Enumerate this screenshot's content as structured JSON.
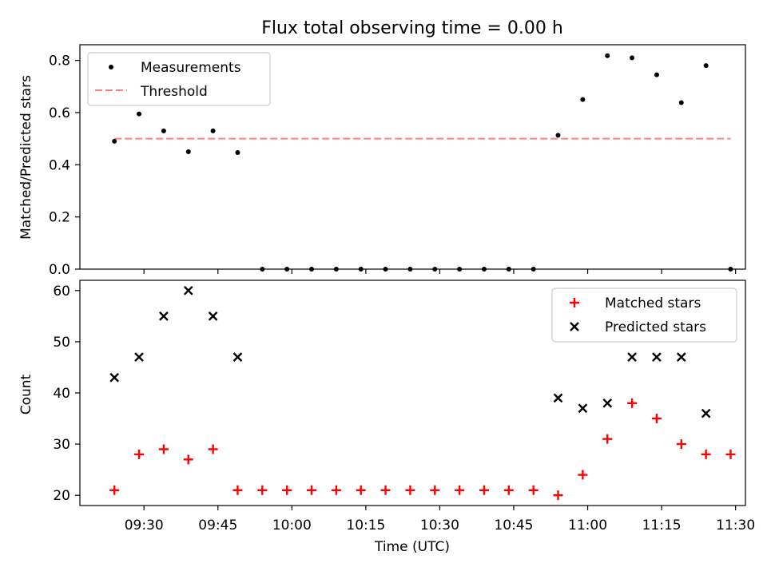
{
  "title": "Flux total observing time = 0.00 h",
  "chart_data": [
    {
      "type": "scatter",
      "title": "Flux total observing time = 0.00 h",
      "ylabel": "Matched/Predicted stars",
      "xlabel": "",
      "ylim": [
        0,
        0.86
      ],
      "xlim": [
        "09:17",
        "11:32"
      ],
      "yticks": [
        "0.0",
        "0.2",
        "0.4",
        "0.6",
        "0.8"
      ],
      "legend_position": "upper-left",
      "series": [
        {
          "name": "Measurements",
          "color": "#000000",
          "marker": "dot",
          "x": [
            "09:24",
            "09:29",
            "09:34",
            "09:39",
            "09:44",
            "09:49",
            "09:54",
            "09:59",
            "10:04",
            "10:09",
            "10:14",
            "10:19",
            "10:24",
            "10:29",
            "10:34",
            "10:39",
            "10:44",
            "10:49",
            "10:54",
            "10:59",
            "11:04",
            "11:09",
            "11:14",
            "11:19",
            "11:24",
            "11:29"
          ],
          "y": [
            0.49,
            0.595,
            0.53,
            0.45,
            0.53,
            0.447,
            0,
            0,
            0,
            0,
            0,
            0,
            0,
            0,
            0,
            0,
            0,
            0,
            0.513,
            0.65,
            0.818,
            0.81,
            0.745,
            0.638,
            0.78,
            0
          ]
        },
        {
          "name": "Threshold",
          "color": "#ff7f7f",
          "style": "dashed",
          "x": [
            "09:24",
            "11:29"
          ],
          "y": [
            0.5,
            0.5
          ]
        }
      ]
    },
    {
      "type": "scatter",
      "ylabel": "Count",
      "xlabel": "Time (UTC)",
      "ylim": [
        18,
        62
      ],
      "xlim": [
        "09:17",
        "11:32"
      ],
      "yticks": [
        "20",
        "30",
        "40",
        "50",
        "60"
      ],
      "xticks": [
        "09:30",
        "09:45",
        "10:00",
        "10:15",
        "10:30",
        "10:45",
        "11:00",
        "11:15",
        "11:30"
      ],
      "legend_position": "upper-right",
      "series": [
        {
          "name": "Matched stars",
          "color": "#ff0000",
          "marker": "plus",
          "x": [
            "09:24",
            "09:29",
            "09:34",
            "09:39",
            "09:44",
            "09:49",
            "09:54",
            "09:59",
            "10:04",
            "10:09",
            "10:14",
            "10:19",
            "10:24",
            "10:29",
            "10:34",
            "10:39",
            "10:44",
            "10:49",
            "10:54",
            "10:59",
            "11:04",
            "11:09",
            "11:14",
            "11:19",
            "11:24",
            "11:29"
          ],
          "y": [
            21,
            28,
            29,
            27,
            29,
            21,
            21,
            21,
            21,
            21,
            21,
            21,
            21,
            21,
            21,
            21,
            21,
            21,
            20,
            24,
            31,
            38,
            35,
            30,
            28,
            28
          ]
        },
        {
          "name": "Predicted stars",
          "color": "#000000",
          "marker": "x",
          "x": [
            "09:24",
            "09:29",
            "09:34",
            "09:39",
            "09:44",
            "09:49",
            "10:54",
            "10:59",
            "11:04",
            "11:09",
            "11:14",
            "11:19",
            "11:24"
          ],
          "y": [
            43,
            47,
            55,
            60,
            55,
            47,
            39,
            37,
            38,
            47,
            47,
            47,
            36
          ]
        }
      ]
    }
  ]
}
